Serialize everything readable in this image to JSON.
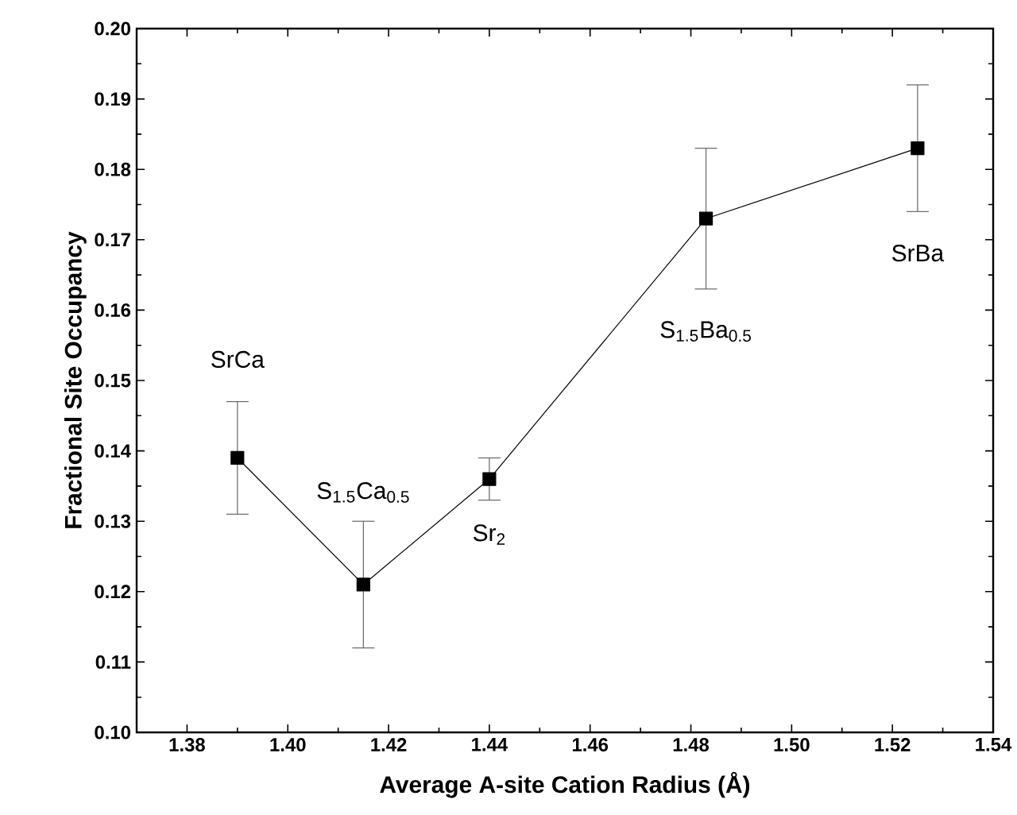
{
  "chart_data": {
    "type": "line",
    "xlabel": "Average A-site Cation Radius (Å)",
    "ylabel": "Fractional Site Occupancy",
    "x": [
      1.39,
      1.415,
      1.44,
      1.483,
      1.525
    ],
    "values": [
      0.139,
      0.121,
      0.136,
      0.173,
      0.183
    ],
    "errors": [
      0.008,
      0.009,
      0.003,
      0.01,
      0.009
    ],
    "color": "#000000",
    "marker": "square",
    "line_style": "solid",
    "xlim": [
      1.37,
      1.54
    ],
    "xticks": [
      1.38,
      {
        "value": 1.4,
        "label": "1.40"
      },
      1.42,
      1.44,
      1.46,
      1.48,
      {
        "value": 1.5,
        "label": "1.50"
      },
      1.52,
      1.54
    ],
    "ylim": [
      0.1,
      0.2
    ],
    "yticks": [
      {
        "value": 0.1,
        "label": "0.10"
      },
      0.11,
      0.12,
      0.13,
      0.14,
      0.15,
      0.16,
      0.17,
      0.18,
      0.19,
      {
        "value": 0.2,
        "label": "0.20"
      }
    ],
    "annotations": [
      "SrCa",
      "S$_{1.5}$Ca$_{0.5}$",
      "Sr$_{2}$",
      "S$_{1.5}$Ba$_{0.5}$",
      "SrBa"
    ]
  }
}
